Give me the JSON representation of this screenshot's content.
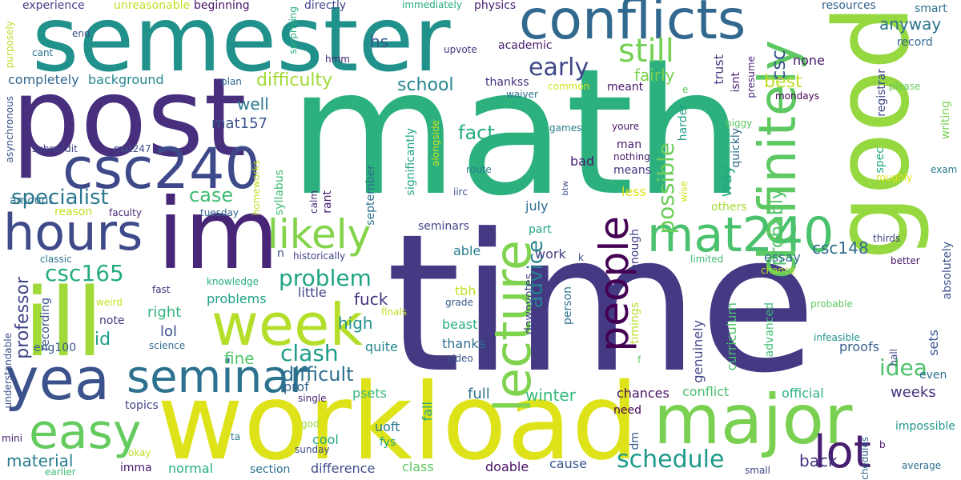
{
  "words": [
    {
      "text": "math",
      "color": "#2cb17e"
    },
    {
      "text": "time",
      "color": "#443983"
    },
    {
      "text": "semester",
      "color": "#21918c"
    },
    {
      "text": "post",
      "color": "#472f7d"
    },
    {
      "text": "workload",
      "color": "#dde318"
    },
    {
      "text": "good",
      "color": "#95d840"
    },
    {
      "text": "im",
      "color": "#482677"
    },
    {
      "text": "ill",
      "color": "#a0da39"
    },
    {
      "text": "conflicts",
      "color": "#31688e"
    },
    {
      "text": "major",
      "color": "#7ad151"
    },
    {
      "text": "definitely",
      "color": "#5ec962"
    },
    {
      "text": "csc240",
      "color": "#3e4989"
    },
    {
      "text": "hours",
      "color": "#3e4a89"
    },
    {
      "text": "week",
      "color": "#b5de2b"
    },
    {
      "text": "yea",
      "color": "#3b528b"
    },
    {
      "text": "seminar",
      "color": "#2c728e"
    },
    {
      "text": "easy",
      "color": "#65cb5e"
    },
    {
      "text": "mat240",
      "color": "#4ac16d"
    },
    {
      "text": "lecture",
      "color": "#7fd34e"
    },
    {
      "text": "people",
      "color": "#440154"
    },
    {
      "text": "lot",
      "color": "#481d6f"
    },
    {
      "text": "likely",
      "color": "#84d44b"
    },
    {
      "text": "still",
      "color": "#75d054"
    },
    {
      "text": "early",
      "color": "#3f4889"
    },
    {
      "text": "possible",
      "color": "#6ccd5a"
    },
    {
      "text": "advice",
      "color": "#26828e"
    },
    {
      "text": "schedule",
      "color": "#1f9a8a"
    },
    {
      "text": "specialist",
      "color": "#2a788e"
    },
    {
      "text": "csc165",
      "color": "#25ab82"
    },
    {
      "text": "problem",
      "color": "#20a386"
    },
    {
      "text": "clash",
      "color": "#1e9c89"
    },
    {
      "text": "difficulty",
      "color": "#a2da37"
    },
    {
      "text": "professor",
      "color": "#404588"
    },
    {
      "text": "case",
      "color": "#3fbc73"
    },
    {
      "text": "difficult",
      "color": "#2d708e"
    },
    {
      "text": "idea",
      "color": "#4ec36b"
    },
    {
      "text": "anyway",
      "color": "#2c738e"
    },
    {
      "text": "csc",
      "color": "#39568c"
    },
    {
      "text": "best",
      "color": "#bddf26"
    },
    {
      "text": "probably",
      "color": "#52c569"
    },
    {
      "text": "fact",
      "color": "#26ad81"
    },
    {
      "text": "mat157",
      "color": "#3b528b"
    },
    {
      "text": "school",
      "color": "#24868e"
    },
    {
      "text": "hs",
      "color": "#38598c"
    },
    {
      "text": "well",
      "color": "#2a788e"
    },
    {
      "text": "way",
      "color": "#22a884"
    },
    {
      "text": "csc148",
      "color": "#306a8e"
    },
    {
      "text": "fairly",
      "color": "#7cd250"
    },
    {
      "text": "winter",
      "color": "#37b878"
    },
    {
      "text": "weeks",
      "color": "#472e7c"
    },
    {
      "text": "high",
      "color": "#20928c"
    },
    {
      "text": "fuck",
      "color": "#46337f"
    },
    {
      "text": "fine",
      "color": "#52c569"
    },
    {
      "text": "back",
      "color": "#46327e"
    },
    {
      "text": "right",
      "color": "#31b57b"
    },
    {
      "text": "id",
      "color": "#1f9e89"
    },
    {
      "text": "lol",
      "color": "#3b528b"
    },
    {
      "text": "note",
      "color": "#453882"
    },
    {
      "text": "material",
      "color": "#287c8e"
    },
    {
      "text": "proofs",
      "color": "#355f8d"
    },
    {
      "text": "essay",
      "color": "#2e6d8e"
    },
    {
      "text": "curriculum",
      "color": "#4ac16d"
    },
    {
      "text": "genuinely",
      "color": "#404688"
    },
    {
      "text": "quite",
      "color": "#24868e"
    },
    {
      "text": "prof",
      "color": "#33638d"
    },
    {
      "text": "psets",
      "color": "#37b878"
    },
    {
      "text": "full",
      "color": "#2d718e"
    },
    {
      "text": "chances",
      "color": "#471063"
    },
    {
      "text": "conflict",
      "color": "#4ac16d"
    },
    {
      "text": "official",
      "color": "#2db27d"
    },
    {
      "text": "need",
      "color": "#440154"
    },
    {
      "text": "none",
      "color": "#481769"
    },
    {
      "text": "trust",
      "color": "#433e85"
    },
    {
      "text": "isnt",
      "color": "#482677"
    },
    {
      "text": "presume",
      "color": "#482576"
    },
    {
      "text": "registrar",
      "color": "#3f4889"
    },
    {
      "text": "record",
      "color": "#31688e"
    },
    {
      "text": "smart",
      "color": "#2c728e"
    },
    {
      "text": "resources",
      "color": "#33638d"
    },
    {
      "text": "please",
      "color": "#67cc5c"
    },
    {
      "text": "writing",
      "color": "#7ad151"
    },
    {
      "text": "mondays",
      "color": "#440154"
    },
    {
      "text": "exam",
      "color": "#2a788e"
    },
    {
      "text": "sets",
      "color": "#39568c"
    },
    {
      "text": "absolutely",
      "color": "#3b528b"
    },
    {
      "text": "thirds",
      "color": "#414487"
    },
    {
      "text": "better",
      "color": "#471365"
    },
    {
      "text": "even",
      "color": "#2c728e"
    },
    {
      "text": "hall",
      "color": "#3e4989"
    },
    {
      "text": "impossible",
      "color": "#1f988b"
    },
    {
      "text": "average",
      "color": "#2e6e8e"
    },
    {
      "text": "schedules",
      "color": "#33638d"
    },
    {
      "text": "small",
      "color": "#404688"
    },
    {
      "text": "infeasible",
      "color": "#21918c"
    },
    {
      "text": "probable",
      "color": "#5ec962"
    },
    {
      "text": "chance",
      "color": "#bade28"
    },
    {
      "text": "limited",
      "color": "#3fbc73"
    },
    {
      "text": "advanced",
      "color": "#3fbc73"
    },
    {
      "text": "timings",
      "color": "#b8de29"
    },
    {
      "text": "enough",
      "color": "#423f85"
    },
    {
      "text": "biggy",
      "color": "#5ec962"
    },
    {
      "text": "roughly",
      "color": "#dde318"
    },
    {
      "text": "spec",
      "color": "#22a884"
    },
    {
      "text": "harder",
      "color": "#1f9e89"
    },
    {
      "text": "quickly",
      "color": "#2f6b8e"
    },
    {
      "text": "youre",
      "color": "#48196b"
    },
    {
      "text": "nothing",
      "color": "#481b6d"
    },
    {
      "text": "means",
      "color": "#453581"
    },
    {
      "text": "man",
      "color": "#482071"
    },
    {
      "text": "less",
      "color": "#dde318"
    },
    {
      "text": "others",
      "color": "#a5db36"
    },
    {
      "text": "wise",
      "color": "#d0e11c"
    },
    {
      "text": "meant",
      "color": "#481668"
    },
    {
      "text": "games",
      "color": "#287d8e"
    },
    {
      "text": "waiver",
      "color": "#2c738e"
    },
    {
      "text": "common",
      "color": "#d0e11c"
    },
    {
      "text": "thankss",
      "color": "#46307e"
    },
    {
      "text": "academic",
      "color": "#481c6e"
    },
    {
      "text": "upvote",
      "color": "#46327e"
    },
    {
      "text": "physics",
      "color": "#482173"
    },
    {
      "text": "immediately",
      "color": "#25ab82"
    },
    {
      "text": "directly",
      "color": "#3f4788"
    },
    {
      "text": "surprising",
      "color": "#29af7f"
    },
    {
      "text": "beginning",
      "color": "#471365"
    },
    {
      "text": "unreasonable",
      "color": "#c2df23"
    },
    {
      "text": "experience",
      "color": "#433d84"
    },
    {
      "text": "end",
      "color": "#3b528b"
    },
    {
      "text": "purposely",
      "color": "#bade28"
    },
    {
      "text": "cant",
      "color": "#2c718e"
    },
    {
      "text": "hmm",
      "color": "#482878"
    },
    {
      "text": "plan",
      "color": "#31688e"
    },
    {
      "text": "completely",
      "color": "#31678e"
    },
    {
      "text": "background",
      "color": "#24868e"
    },
    {
      "text": "asynchronous",
      "color": "#3b528b"
    },
    {
      "text": "subreddit",
      "color": "#424186"
    },
    {
      "text": "mat247",
      "color": "#3d4e8a"
    },
    {
      "text": "alongside",
      "color": "#c8e020"
    },
    {
      "text": "significantly",
      "color": "#20a386"
    },
    {
      "text": "homeworks",
      "color": "#c0df25"
    },
    {
      "text": "syllabus",
      "color": "#3fbc73"
    },
    {
      "text": "route",
      "color": "#277f8e"
    },
    {
      "text": "iirc",
      "color": "#39558c"
    },
    {
      "text": "btw",
      "color": "#3e4989"
    },
    {
      "text": "bad",
      "color": "#481b6d"
    },
    {
      "text": "july",
      "color": "#2e6f8e"
    },
    {
      "text": "calm",
      "color": "#472d7b"
    },
    {
      "text": "rant",
      "color": "#481b6d"
    },
    {
      "text": "september",
      "color": "#2e6e8e"
    },
    {
      "text": "seminars",
      "color": "#414487"
    },
    {
      "text": "part",
      "color": "#20a486"
    },
    {
      "text": "able",
      "color": "#287d8e"
    },
    {
      "text": "work",
      "color": "#424186"
    },
    {
      "text": "k",
      "color": "#3d4d8a"
    },
    {
      "text": "amount",
      "color": "#2c738e"
    },
    {
      "text": "reason",
      "color": "#c2df23"
    },
    {
      "text": "faculty",
      "color": "#482878"
    },
    {
      "text": "tuesday",
      "color": "#31688e"
    },
    {
      "text": "classic",
      "color": "#2c728e"
    },
    {
      "text": "historically",
      "color": "#404588"
    },
    {
      "text": "n",
      "color": "#3e4c8a"
    },
    {
      "text": "knowledge",
      "color": "#29af7f"
    },
    {
      "text": "fast",
      "color": "#46307e"
    },
    {
      "text": "weird",
      "color": "#c8e020"
    },
    {
      "text": "problems",
      "color": "#1fa188"
    },
    {
      "text": "little",
      "color": "#414487"
    },
    {
      "text": "tbh",
      "color": "#c2df23"
    },
    {
      "text": "recording",
      "color": "#3b528b"
    },
    {
      "text": "science",
      "color": "#2e6e8e"
    },
    {
      "text": "understandable",
      "color": "#3d4d8a"
    },
    {
      "text": "eng100",
      "color": "#38588c"
    },
    {
      "text": "downvotes",
      "color": "#414487"
    },
    {
      "text": "person",
      "color": "#2c738e"
    },
    {
      "text": "grade",
      "color": "#38588c"
    },
    {
      "text": "beast",
      "color": "#29af7f"
    },
    {
      "text": "thanks",
      "color": "#2d708e"
    },
    {
      "text": "video",
      "color": "#3b528b"
    },
    {
      "text": "finals",
      "color": "#c2df23"
    },
    {
      "text": "single",
      "color": "#482475"
    },
    {
      "text": "topics",
      "color": "#404588"
    },
    {
      "text": "cool",
      "color": "#22a884"
    },
    {
      "text": "uoft",
      "color": "#2a788e"
    },
    {
      "text": "fys",
      "color": "#1fa187"
    },
    {
      "text": "fall",
      "color": "#20a486"
    },
    {
      "text": "god",
      "color": "#9bd93c"
    },
    {
      "text": "sunday",
      "color": "#3e4a89"
    },
    {
      "text": "ta",
      "color": "#2a768e"
    },
    {
      "text": "mini",
      "color": "#482173"
    },
    {
      "text": "okay",
      "color": "#c0df25"
    },
    {
      "text": "earlier",
      "color": "#3dbc74"
    },
    {
      "text": "imma",
      "color": "#481a6c"
    },
    {
      "text": "normal",
      "color": "#26ad81"
    },
    {
      "text": "section",
      "color": "#2c738e"
    },
    {
      "text": "difference",
      "color": "#3e4c8a"
    },
    {
      "text": "class",
      "color": "#5ec962"
    },
    {
      "text": "doable",
      "color": "#471063"
    },
    {
      "text": "cause",
      "color": "#39568c"
    },
    {
      "text": "dm",
      "color": "#38598c"
    },
    {
      "text": "f",
      "color": "#5ec962"
    },
    {
      "text": "e",
      "color": "#5ec962"
    },
    {
      "text": "b",
      "color": "#48186a"
    }
  ]
}
